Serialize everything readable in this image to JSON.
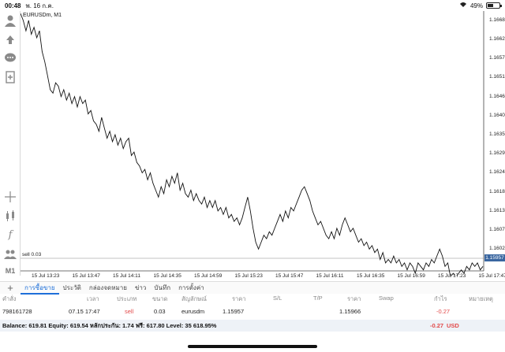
{
  "status": {
    "time": "00:48",
    "date": "พ. 16 ก.ค.",
    "battery": "49%",
    "battery_level": 0.49
  },
  "toolbar": {
    "icons": [
      "user-icon",
      "hand-icon",
      "chat-icon",
      "add-document-icon",
      "crosshair-icon",
      "candles-icon",
      "function-icon",
      "people-icon"
    ],
    "timeframe": "M1"
  },
  "chart": {
    "symbol_label": "EURUSDm, M1",
    "current_price": "1.15957",
    "sell_line_label": "sell 0.03",
    "price_labels": [
      "1.16680",
      "1.16625",
      "1.16570",
      "1.16515",
      "1.16460",
      "1.16405",
      "1.16350",
      "1.16295",
      "1.16240",
      "1.16185",
      "1.16130",
      "1.16075",
      "1.16020"
    ],
    "time_labels": [
      "15 Jul 13:23",
      "15 Jul 13:47",
      "15 Jul 14:11",
      "15 Jul 14:35",
      "15 Jul 14:59",
      "15 Jul 15:23",
      "15 Jul 15:47",
      "15 Jul 16:11",
      "15 Jul 16:35",
      "15 Jul 16:59",
      "15 Jul 17:23",
      "15 Jul 17:47"
    ]
  },
  "chart_data": {
    "type": "line",
    "ylim": [
      1.15957,
      1.16707
    ],
    "series": [
      {
        "values": [
          1.167,
          1.1668,
          1.1665,
          1.1668,
          1.1664,
          1.1666,
          1.1663,
          1.1665,
          1.1659,
          1.1656,
          1.1652,
          1.1648,
          1.1647,
          1.165,
          1.1649,
          1.1646,
          1.1648,
          1.1645,
          1.1647,
          1.1644,
          1.1646,
          1.1643,
          1.1646,
          1.1644,
          1.1645,
          1.1641,
          1.1642,
          1.1639,
          1.1638,
          1.1636,
          1.164,
          1.1637,
          1.1634,
          1.1636,
          1.1633,
          1.1635,
          1.1632,
          1.1634,
          1.1631,
          1.1633,
          1.1634,
          1.1629,
          1.163,
          1.1627,
          1.1626,
          1.1624,
          1.1625,
          1.1622,
          1.1624,
          1.1621,
          1.1619,
          1.1617,
          1.162,
          1.1618,
          1.1622,
          1.162,
          1.1623,
          1.1621,
          1.1624,
          1.1619,
          1.1621,
          1.1618,
          1.1617,
          1.1619,
          1.1616,
          1.1618,
          1.1616,
          1.1615,
          1.1617,
          1.1614,
          1.1616,
          1.1614,
          1.1616,
          1.1613,
          1.1614,
          1.1612,
          1.1614,
          1.1611,
          1.1612,
          1.161,
          1.1611,
          1.1609,
          1.1611,
          1.1614,
          1.1617,
          1.1613,
          1.1608,
          1.1604,
          1.1602,
          1.1604,
          1.1606,
          1.1605,
          1.1607,
          1.1606,
          1.1608,
          1.161,
          1.1612,
          1.161,
          1.1613,
          1.1611,
          1.1614,
          1.1613,
          1.1615,
          1.1617,
          1.1619,
          1.162,
          1.1618,
          1.1616,
          1.1613,
          1.1611,
          1.1609,
          1.161,
          1.1608,
          1.1606,
          1.1605,
          1.1607,
          1.1605,
          1.1608,
          1.1606,
          1.1609,
          1.1611,
          1.1609,
          1.1607,
          1.1608,
          1.1606,
          1.1604,
          1.1605,
          1.1603,
          1.1604,
          1.1602,
          1.1603,
          1.1601,
          1.1602,
          1.1599,
          1.1601,
          1.1598,
          1.1599,
          1.1598,
          1.16,
          1.1598,
          1.1599,
          1.1597,
          1.1598,
          1.1596,
          1.1598,
          1.1597,
          1.1595,
          1.1598,
          1.1597,
          1.1596,
          1.1598,
          1.1597,
          1.1599,
          1.1598,
          1.16,
          1.1602,
          1.16,
          1.1597,
          1.1598,
          1.1594,
          1.1595,
          1.1594,
          1.1595,
          1.1596,
          1.1595,
          1.1597,
          1.1596,
          1.1598,
          1.1597,
          1.1598,
          1.1596,
          1.1597
        ]
      }
    ]
  },
  "tabs": [
    "การซื้อขาย",
    "ประวัติ",
    "กล่องจดหมาย",
    "ข่าว",
    "บันทึก",
    "การตั้งค่า"
  ],
  "table": {
    "headers": [
      "คำสั่ง",
      "เวลา",
      "ประเภท",
      "ขนาด",
      "สัญลักษณ์",
      "ราคา",
      "S/L",
      "T/P",
      "ราคา",
      "Swap",
      "กำไร",
      "หมายเหตุ"
    ],
    "row": {
      "order": "798161728",
      "time": "07.15 17:47",
      "type": "sell",
      "size": "0.03",
      "symbol": "eurusdm",
      "price": "1.15957",
      "sl": "",
      "tp": "",
      "cur_price": "1.15966",
      "swap": "",
      "profit": "-0.27",
      "comment": ""
    }
  },
  "balance": {
    "text": "Balance: 619.81 Equity: 619.54 หลักประกัน: 1.74 ฟรี: 617.80 Level: 35 618.95%",
    "total": "-0.27",
    "currency": "USD"
  }
}
